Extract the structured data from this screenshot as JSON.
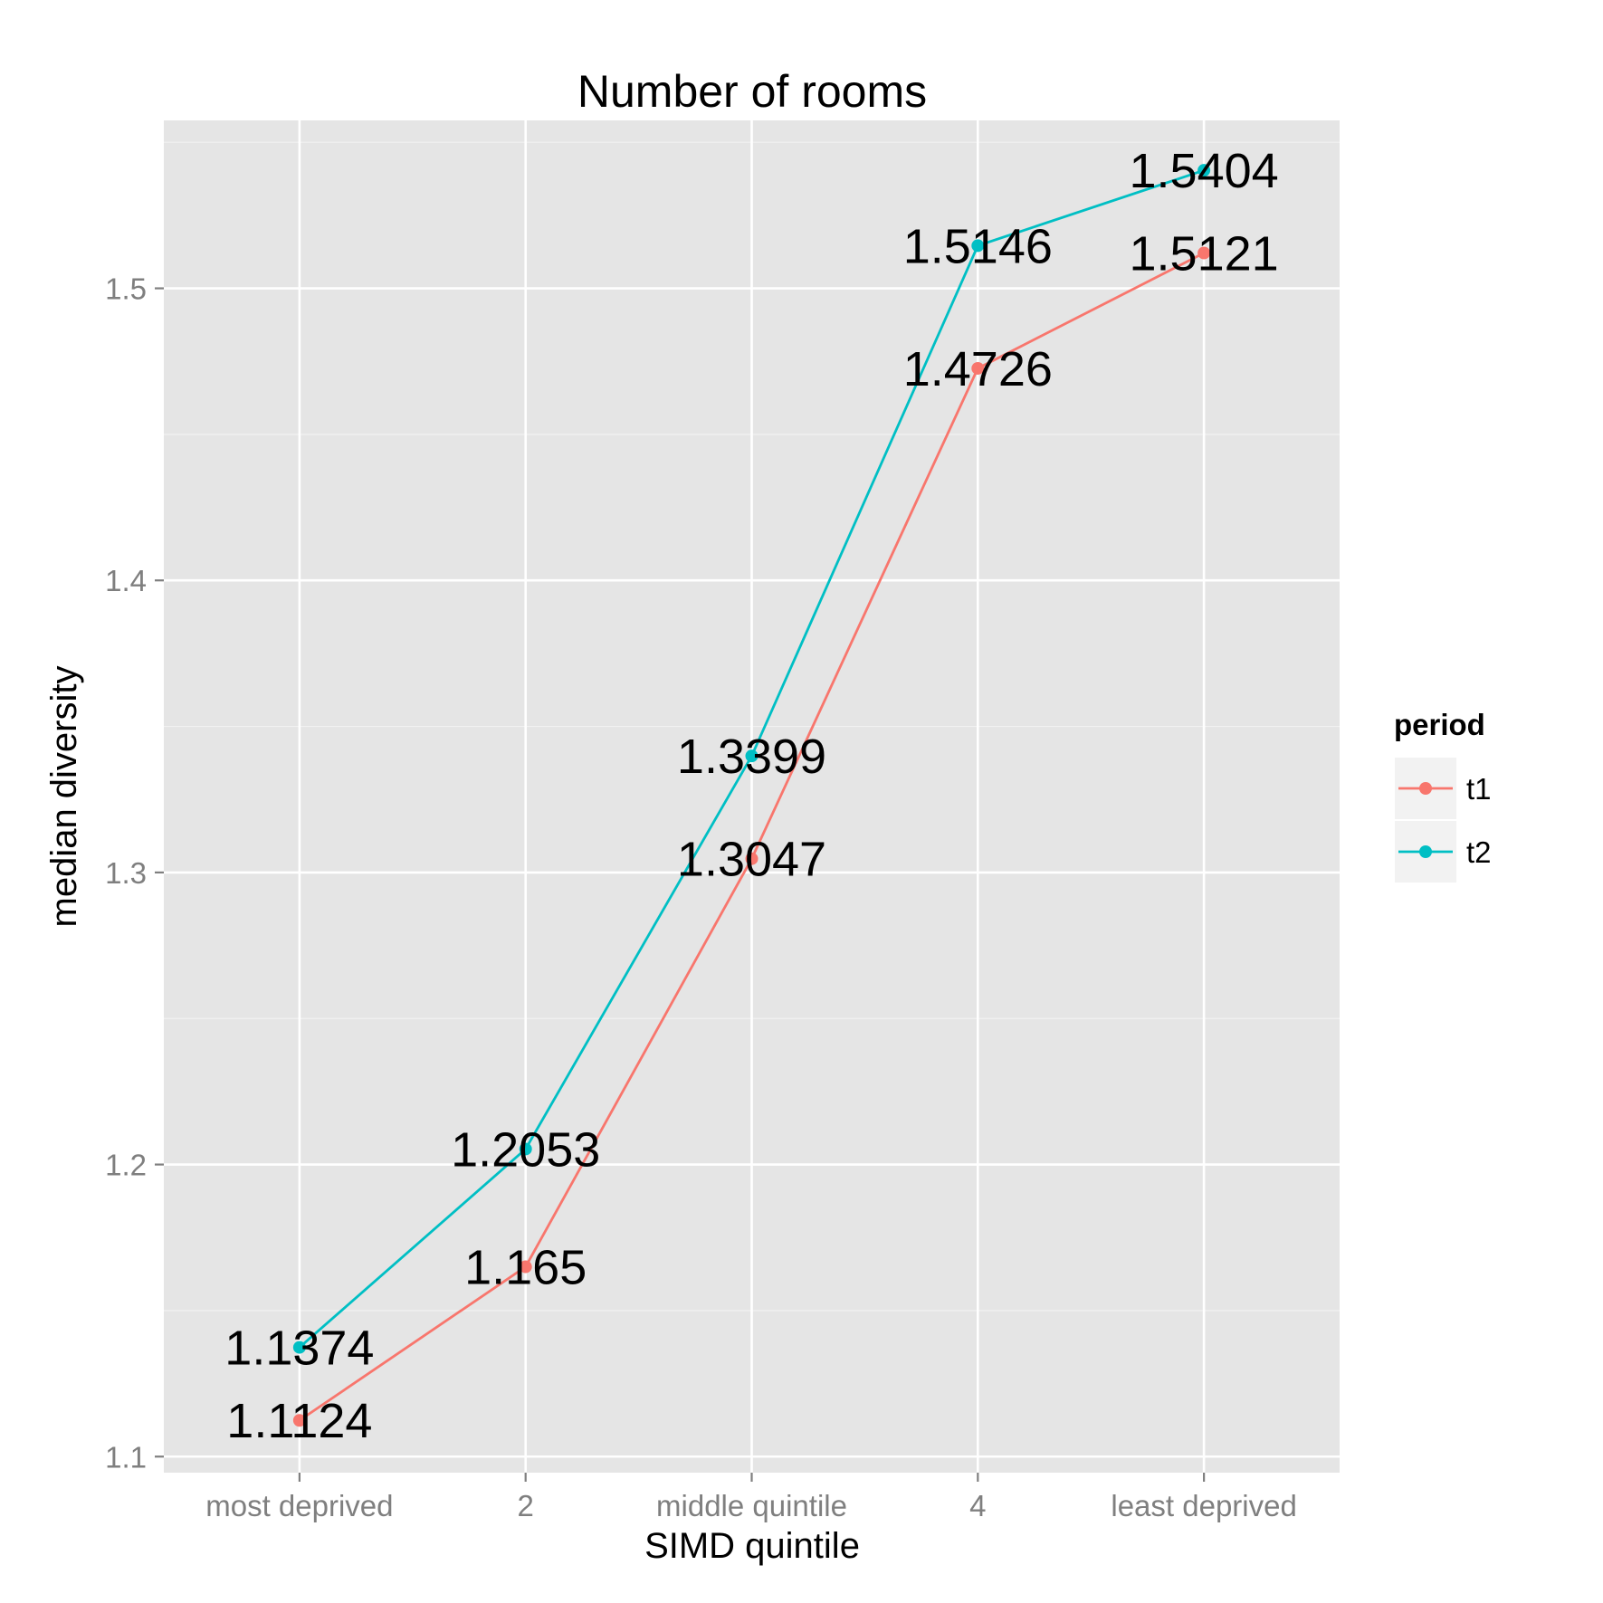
{
  "chart_data": {
    "type": "line",
    "title": "Number of rooms",
    "xlabel": "SIMD quintile",
    "ylabel": "median diversity",
    "categories": [
      "most deprived",
      "2",
      "middle quintile",
      "4",
      "least deprived"
    ],
    "ylim": [
      1.0945,
      1.5575
    ],
    "yticks": [
      1.1,
      1.2,
      1.3,
      1.4,
      1.5
    ],
    "ytick_labels": [
      "1.1",
      "1.2",
      "1.3",
      "1.4",
      "1.5"
    ],
    "grid": true,
    "series": [
      {
        "name": "t1",
        "color": "#F8766D",
        "values": [
          1.1124,
          1.165,
          1.3047,
          1.4726,
          1.5121
        ],
        "labels": [
          "1.1124",
          "1.165",
          "1.3047",
          "1.4726",
          "1.5121"
        ]
      },
      {
        "name": "t2",
        "color": "#00BFC4",
        "values": [
          1.1374,
          1.2053,
          1.3399,
          1.5146,
          1.5404
        ],
        "labels": [
          "1.1374",
          "1.2053",
          "1.3399",
          "1.5146",
          "1.5404"
        ]
      }
    ],
    "legend": {
      "title": "period",
      "position": "right"
    },
    "colors": {
      "panel_background": "#E5E5E5",
      "grid_major": "#FFFFFF",
      "tick_label": "#7F7F7F"
    }
  }
}
